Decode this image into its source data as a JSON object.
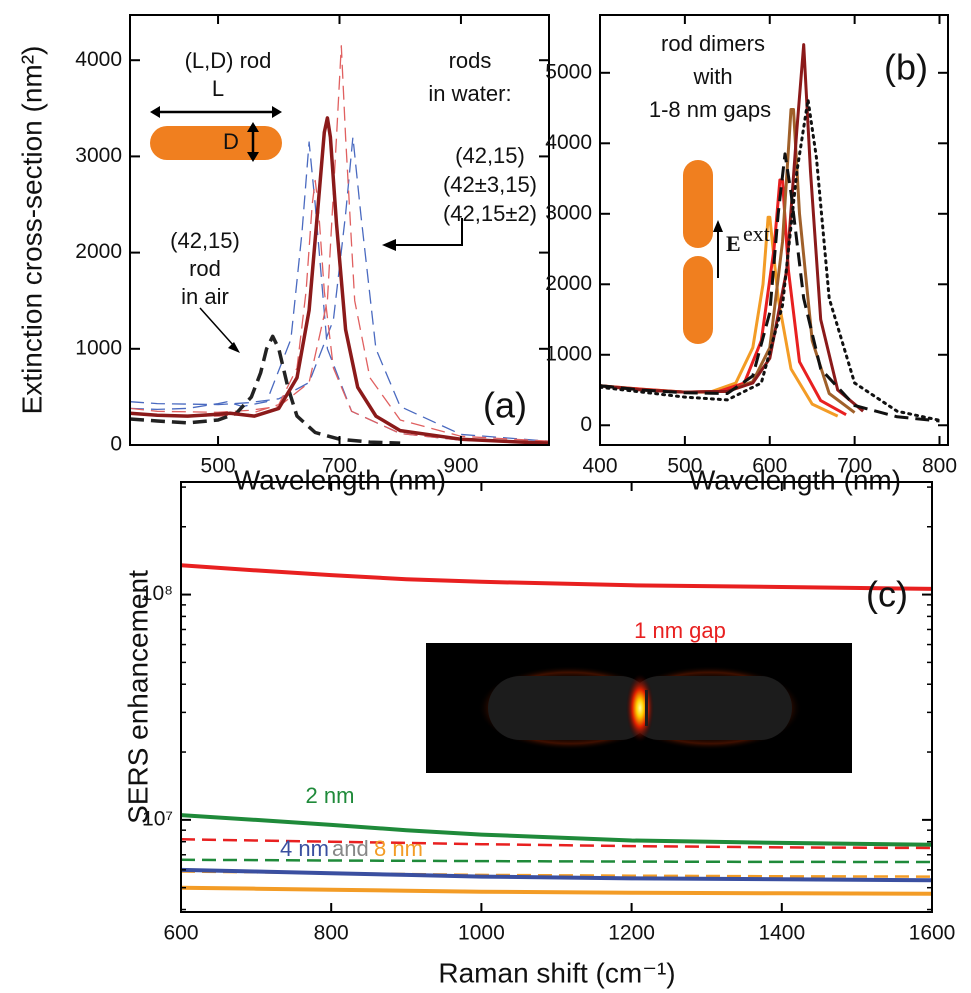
{
  "chart_data": [
    {
      "type": "line",
      "panel_label": "(a)",
      "x_label": "Wavelength (nm)",
      "y_label": "Extinction cross-section (nm²)",
      "xlim": [
        355,
        1045
      ],
      "ylim": [
        0,
        4470
      ],
      "xticks": [
        500,
        700,
        900
      ],
      "yticks": [
        0,
        1000,
        2000,
        3000,
        4000
      ],
      "annotations": [
        {
          "text": "(L,D) rod"
        },
        {
          "text": "L"
        },
        {
          "text": "D"
        },
        {
          "text": "rods"
        },
        {
          "text": "in water:"
        },
        {
          "text": "(42,15)"
        },
        {
          "text": "(42±3,15)"
        },
        {
          "text": "(42,15±2)"
        },
        {
          "text": "(42,15)"
        },
        {
          "text": "rod"
        },
        {
          "text": "in air"
        }
      ],
      "series": [
        {
          "color": "#4a6ac0",
          "style": "dashed",
          "width": 1.3,
          "x": [
            355,
            400,
            450,
            500,
            515,
            540,
            580,
            620,
            638,
            650,
            660,
            680,
            720,
            800,
            900,
            1045
          ],
          "values": [
            380,
            370,
            380,
            430,
            450,
            400,
            450,
            1100,
            2200,
            3150,
            2500,
            1000,
            350,
            120,
            50,
            25
          ]
        },
        {
          "color": "#4a6ac0",
          "style": "dashed",
          "width": 1.3,
          "x": [
            355,
            400,
            500,
            550,
            600,
            650,
            690,
            710,
            722,
            735,
            760,
            800,
            900,
            1045
          ],
          "values": [
            450,
            430,
            420,
            440,
            480,
            650,
            1300,
            2400,
            3200,
            2400,
            1000,
            400,
            110,
            40
          ]
        },
        {
          "color": "#e06060",
          "style": "dashed",
          "width": 1.3,
          "x": [
            355,
            400,
            500,
            550,
            600,
            630,
            645,
            655,
            660,
            665,
            675,
            690,
            720,
            800,
            900,
            1045
          ],
          "values": [
            330,
            310,
            300,
            320,
            420,
            800,
            1600,
            2500,
            2750,
            2500,
            1600,
            800,
            350,
            120,
            50,
            25
          ]
        },
        {
          "color": "#e06060",
          "style": "dashed",
          "width": 1.3,
          "x": [
            355,
            400,
            500,
            550,
            600,
            650,
            680,
            695,
            703,
            710,
            725,
            750,
            800,
            900,
            1045
          ],
          "values": [
            380,
            350,
            340,
            360,
            400,
            650,
            1500,
            3200,
            4150,
            3200,
            1500,
            700,
            260,
            90,
            40
          ]
        },
        {
          "color": "#222222",
          "style": "dashed",
          "width": 3.5,
          "x": [
            355,
            400,
            450,
            500,
            530,
            555,
            570,
            580,
            590,
            600,
            615,
            630,
            660,
            700,
            750,
            800
          ],
          "values": [
            270,
            250,
            230,
            260,
            330,
            500,
            750,
            1000,
            1130,
            1000,
            600,
            300,
            130,
            60,
            30,
            20
          ]
        },
        {
          "color": "#8b1a1a",
          "style": "solid",
          "width": 3.5,
          "x": [
            355,
            400,
            450,
            500,
            520,
            560,
            600,
            630,
            650,
            665,
            675,
            680,
            685,
            695,
            710,
            730,
            760,
            800,
            900,
            1000,
            1045
          ],
          "values": [
            330,
            310,
            300,
            320,
            330,
            300,
            380,
            700,
            1400,
            2500,
            3250,
            3400,
            3200,
            2300,
            1200,
            600,
            300,
            150,
            60,
            30,
            20
          ]
        }
      ]
    },
    {
      "type": "line",
      "panel_label": "(b)",
      "x_label": "Wavelength (nm)",
      "xlim": [
        400,
        810
      ],
      "ylim": [
        -280,
        5820
      ],
      "xticks": [
        400,
        500,
        600,
        700,
        800
      ],
      "yticks": [
        0,
        1000,
        2000,
        3000,
        4000,
        5000
      ],
      "annotations": [
        {
          "text": "rod dimers"
        },
        {
          "text": "with"
        },
        {
          "text": "1-8 nm gaps"
        },
        {
          "text": "E"
        },
        {
          "text": "ext"
        }
      ],
      "series": [
        {
          "color": "#f39c26",
          "style": "solid",
          "width": 3,
          "x": [
            400,
            450,
            500,
            530,
            560,
            580,
            592,
            598,
            600,
            610,
            625,
            650,
            680
          ],
          "values": [
            560,
            510,
            470,
            470,
            600,
            1100,
            2000,
            2950,
            2950,
            1800,
            800,
            300,
            130
          ]
        },
        {
          "color": "#e82020",
          "style": "solid",
          "width": 3,
          "x": [
            400,
            450,
            500,
            540,
            570,
            590,
            605,
            612,
            615,
            622,
            635,
            660,
            690
          ],
          "values": [
            560,
            510,
            470,
            480,
            600,
            1200,
            2500,
            3480,
            3480,
            2200,
            900,
            350,
            150
          ]
        },
        {
          "color": "#a0602a",
          "style": "solid",
          "width": 3,
          "x": [
            400,
            450,
            500,
            550,
            580,
            600,
            615,
            625,
            628,
            635,
            650,
            670,
            700
          ],
          "values": [
            560,
            500,
            470,
            480,
            620,
            1100,
            2600,
            4480,
            4480,
            3000,
            1200,
            450,
            180
          ]
        },
        {
          "color": "#8b1a1a",
          "style": "solid",
          "width": 3,
          "x": [
            400,
            450,
            500,
            550,
            580,
            600,
            620,
            632,
            640,
            648,
            660,
            680,
            710
          ],
          "values": [
            560,
            500,
            470,
            480,
            600,
            950,
            2200,
            4200,
            5400,
            3600,
            1500,
            500,
            200
          ]
        },
        {
          "color": "#111111",
          "style": "dashed",
          "width": 3,
          "x": [
            400,
            450,
            500,
            550,
            580,
            600,
            610,
            618,
            625,
            640,
            660,
            700,
            750,
            800
          ],
          "values": [
            560,
            500,
            460,
            450,
            700,
            1600,
            3000,
            3850,
            3300,
            1800,
            800,
            280,
            120,
            60
          ]
        },
        {
          "color": "#111111",
          "style": "dotted",
          "width": 3,
          "x": [
            400,
            450,
            500,
            550,
            590,
            615,
            632,
            645,
            655,
            670,
            700,
            750,
            800
          ],
          "values": [
            540,
            470,
            400,
            360,
            600,
            1700,
            3600,
            4620,
            3800,
            1800,
            600,
            200,
            70
          ]
        }
      ]
    },
    {
      "type": "line",
      "panel_label": "(c)",
      "x_label": "Raman shift (cm⁻¹)",
      "y_label": "SERS enhancement",
      "ylog": true,
      "xlim": [
        600,
        1600
      ],
      "ylim": [
        3900000,
        316000000
      ],
      "xticks": [
        600,
        800,
        1000,
        1200,
        1400,
        1600
      ],
      "yticks": [
        {
          "value": 10000000,
          "label": "10⁷"
        },
        {
          "value": 100000000,
          "label": "10⁸"
        }
      ],
      "yminorticks": [
        4000000,
        5000000,
        6000000,
        7000000,
        8000000,
        9000000,
        20000000,
        30000000,
        40000000,
        50000000,
        60000000,
        70000000,
        80000000,
        90000000,
        200000000,
        300000000
      ],
      "annotations": [
        {
          "text": "1 nm gap",
          "color": "#e82020"
        },
        {
          "text": "2 nm",
          "color": "#1f8a3a"
        },
        {
          "text": "4 nm",
          "color": "#3a4fa0"
        },
        {
          "text": "and",
          "color": "#888888"
        },
        {
          "text": "8 nm",
          "color": "#f39c26"
        }
      ],
      "series": [
        {
          "color": "#e82020",
          "style": "solid",
          "width": 4,
          "x": [
            600,
            700,
            800,
            900,
            1000,
            1200,
            1400,
            1600
          ],
          "values": [
            135000000,
            128000000,
            122000000,
            117000000,
            114000000,
            110000000,
            108000000,
            106000000
          ]
        },
        {
          "color": "#1f8a3a",
          "style": "solid",
          "width": 4,
          "x": [
            600,
            700,
            800,
            900,
            1000,
            1200,
            1400,
            1600
          ],
          "values": [
            10500000,
            10000000,
            9500000,
            9000000,
            8600000,
            8100000,
            7900000,
            7750000
          ]
        },
        {
          "color": "#e82020",
          "style": "dashed",
          "width": 2.5,
          "x": [
            600,
            700,
            800,
            900,
            1000,
            1200,
            1400,
            1600
          ],
          "values": [
            8200000,
            8100000,
            8000000,
            7900000,
            7800000,
            7650000,
            7550000,
            7500000
          ]
        },
        {
          "color": "#1f8a3a",
          "style": "dashed",
          "width": 2.5,
          "x": [
            600,
            700,
            800,
            900,
            1000,
            1200,
            1400,
            1600
          ],
          "values": [
            6650000,
            6630000,
            6600000,
            6580000,
            6560000,
            6530000,
            6510000,
            6500000
          ]
        },
        {
          "color": "#f39c26",
          "style": "dashed",
          "width": 2.5,
          "x": [
            600,
            700,
            800,
            900,
            1000,
            1200,
            1400,
            1600
          ],
          "values": [
            5900000,
            5850000,
            5800000,
            5750000,
            5700000,
            5650000,
            5620000,
            5600000
          ]
        },
        {
          "color": "#3a4fa0",
          "style": "solid",
          "width": 4,
          "x": [
            600,
            700,
            800,
            900,
            1000,
            1200,
            1400,
            1600
          ],
          "values": [
            6000000,
            5900000,
            5800000,
            5700000,
            5600000,
            5500000,
            5450000,
            5400000
          ]
        },
        {
          "color": "#f39c26",
          "style": "solid",
          "width": 4,
          "x": [
            600,
            700,
            800,
            900,
            1000,
            1200,
            1400,
            1600
          ],
          "values": [
            5000000,
            4950000,
            4900000,
            4850000,
            4800000,
            4750000,
            4720000,
            4700000
          ]
        }
      ]
    }
  ]
}
